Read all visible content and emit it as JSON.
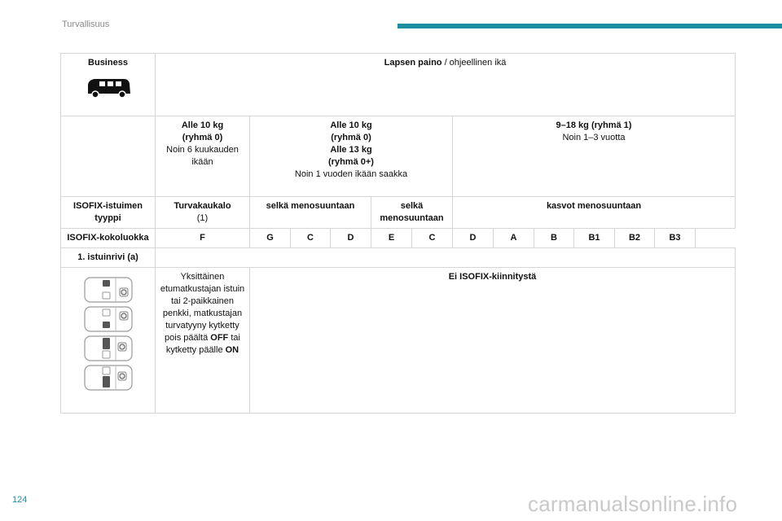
{
  "header": {
    "title": "Turvallisuus"
  },
  "page_number": "124",
  "watermark": "carmanualsonline.info",
  "table": {
    "version_label": "Business",
    "vehicle_icon": "van-icon",
    "weight_header_bold": "Lapsen paino",
    "weight_header_rest": " / ohjeellinen ikä",
    "groups": [
      {
        "line1": "Alle 10 kg",
        "line2": "(ryhmä 0)",
        "note": "Noin 6 kuukauden ikään"
      },
      {
        "line1": "Alle 10 kg",
        "line2": "(ryhmä 0)",
        "line3": "Alle 13 kg",
        "line4": "(ryhmä 0+)",
        "note": "Noin 1 vuoden ikään saakka"
      },
      {
        "line1": "9–18 kg (ryhmä 1)",
        "note": "Noin 1–3 vuotta"
      }
    ],
    "seat_type_label": "ISOFIX-istuimen tyyppi",
    "seat_types": [
      {
        "bold": "Turvakaukalo",
        "note": "(1)"
      },
      {
        "bold": "selkä menosuuntaan"
      },
      {
        "bold": "selkä menosuuntaan"
      },
      {
        "bold": "kasvot menosuuntaan"
      }
    ],
    "class_label": "ISOFIX-kokoluokka",
    "classes": [
      "F",
      "G",
      "C",
      "D",
      "E",
      "C",
      "D",
      "A",
      "B",
      "B1",
      "B2",
      "B3"
    ],
    "row_label": "1. istuinrivi (a)",
    "seat_desc": {
      "part1": "Yksittäinen etumatkustajan istuin tai 2-paikkainen penkki, matkustajan turvatyyny kytketty pois päältä ",
      "off": "OFF",
      "part2": " tai kytketty päälle ",
      "on": "ON"
    },
    "no_isofix": "Ei ISOFIX-kiinnitystä",
    "seat_diagrams": [
      "car-seat-diagram-icon",
      "car-seat-diagram-icon",
      "car-seat-diagram-icon",
      "car-seat-diagram-icon"
    ]
  }
}
